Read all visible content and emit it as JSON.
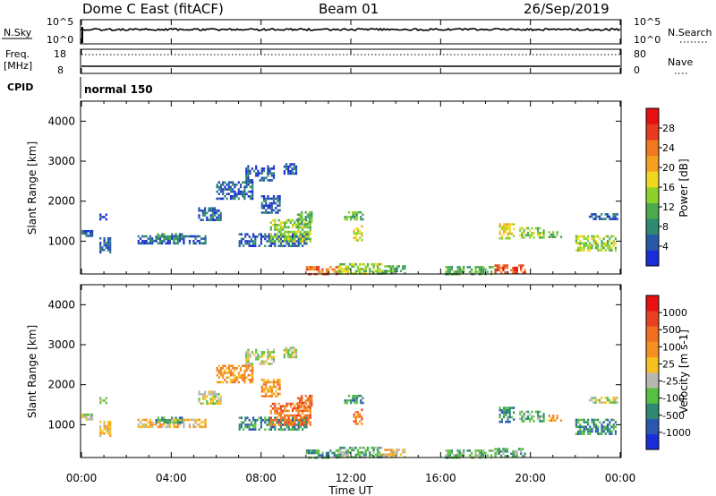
{
  "header": {
    "title": "Dome C East (fitACF)",
    "beam": "Beam 01",
    "date": "26/Sep/2019"
  },
  "top_panel": {
    "nsky_label": "N.Sky",
    "nsky_ticks_left": [
      "10^5",
      "10^0"
    ],
    "nsky_ticks_right": [
      "10^5",
      "10^0"
    ],
    "nsearch_label": "N.Search",
    "freq_label": "Freq.",
    "freq_unit": "[MHz]",
    "freq_ticks": [
      "18",
      "8"
    ],
    "nave_ticks": [
      "80",
      "0"
    ],
    "nave_label": "Nave",
    "cpid_label": "CPID",
    "cpid_value": "normal 150"
  },
  "x_axis": {
    "label": "Time UT",
    "ticks": [
      "00:00",
      "04:00",
      "08:00",
      "12:00",
      "16:00",
      "20:00",
      "00:00"
    ]
  },
  "chart_data": [
    {
      "type": "heatmap",
      "name": "power",
      "ylabel": "Slant Range [km]",
      "yticks": [
        1000,
        2000,
        3000,
        4000
      ],
      "ylim": [
        180,
        4500
      ],
      "xlim": [
        0,
        24
      ],
      "colorbar": {
        "label": "Power [dB]",
        "ticks": [
          "4",
          "8",
          "12",
          "16",
          "20",
          "24",
          "28"
        ],
        "colors": [
          "#1a2bd8",
          "#2858a8",
          "#2e8a70",
          "#4caa4c",
          "#8cd22a",
          "#f0d820",
          "#f5a020",
          "#f07820",
          "#e83a20",
          "#e81010"
        ]
      },
      "clusters": [
        {
          "t": [
            0.0,
            0.5
          ],
          "r": [
            1150,
            1280
          ],
          "level": 1
        },
        {
          "t": [
            0.8,
            1.3
          ],
          "r": [
            700,
            1100
          ],
          "level": 1
        },
        {
          "t": [
            0.8,
            1.1
          ],
          "r": [
            1550,
            1750
          ],
          "level": 1
        },
        {
          "t": [
            2.5,
            5.5
          ],
          "r": [
            950,
            1150
          ],
          "level": 1
        },
        {
          "t": [
            3.2,
            4.5
          ],
          "r": [
            1050,
            1200
          ],
          "level": 2
        },
        {
          "t": [
            5.2,
            6.2
          ],
          "r": [
            1550,
            1850
          ],
          "level": 1
        },
        {
          "t": [
            6.0,
            7.6
          ],
          "r": [
            2050,
            2500
          ],
          "level": 1
        },
        {
          "t": [
            7.3,
            8.6
          ],
          "r": [
            2550,
            2900
          ],
          "level": 1
        },
        {
          "t": [
            9.0,
            9.6
          ],
          "r": [
            2700,
            2950
          ],
          "level": 1
        },
        {
          "t": [
            8.0,
            8.8
          ],
          "r": [
            1700,
            2150
          ],
          "level": 1
        },
        {
          "t": [
            7.0,
            10.0
          ],
          "r": [
            900,
            1200
          ],
          "level": 1
        },
        {
          "t": [
            8.4,
            10.2
          ],
          "r": [
            1000,
            1550
          ],
          "level": 4
        },
        {
          "t": [
            9.6,
            10.3
          ],
          "r": [
            1450,
            1750
          ],
          "level": 3
        },
        {
          "t": [
            11.7,
            12.5
          ],
          "r": [
            1550,
            1750
          ],
          "level": 3
        },
        {
          "t": [
            12.1,
            12.5
          ],
          "r": [
            1000,
            1400
          ],
          "level": 5
        },
        {
          "t": [
            10.0,
            11.4
          ],
          "r": [
            200,
            380
          ],
          "level": 7
        },
        {
          "t": [
            11.4,
            13.4
          ],
          "r": [
            200,
            450
          ],
          "level": 4
        },
        {
          "t": [
            13.4,
            14.4
          ],
          "r": [
            200,
            400
          ],
          "level": 3
        },
        {
          "t": [
            16.2,
            18.4
          ],
          "r": [
            200,
            380
          ],
          "level": 3
        },
        {
          "t": [
            18.4,
            19.8
          ],
          "r": [
            200,
            420
          ],
          "level": 8
        },
        {
          "t": [
            18.6,
            19.3
          ],
          "r": [
            1100,
            1450
          ],
          "level": 5
        },
        {
          "t": [
            19.5,
            20.6
          ],
          "r": [
            1100,
            1350
          ],
          "level": 4
        },
        {
          "t": [
            20.8,
            21.4
          ],
          "r": [
            1100,
            1250
          ],
          "level": 3
        },
        {
          "t": [
            22.0,
            23.8
          ],
          "r": [
            750,
            1150
          ],
          "level": 4
        },
        {
          "t": [
            22.6,
            23.9
          ],
          "r": [
            1550,
            1700
          ],
          "level": 1
        }
      ]
    },
    {
      "type": "heatmap",
      "name": "velocity",
      "ylabel": "Slant Range [km]",
      "yticks": [
        1000,
        2000,
        3000,
        4000
      ],
      "ylim": [
        180,
        4500
      ],
      "xlim": [
        0,
        24
      ],
      "colorbar": {
        "label": "Velocity [m s-1]",
        "ticks": [
          "1000",
          "500",
          "100",
          "25",
          "-25",
          "-100",
          "-500",
          "-1000"
        ],
        "colors": [
          "#1a2bd8",
          "#2a58b0",
          "#2e8a70",
          "#58c040",
          "#b8b8b0",
          "#f5c020",
          "#f59020",
          "#f07020",
          "#e84020",
          "#e81010"
        ]
      },
      "clusters": [
        {
          "t": [
            0.0,
            0.5
          ],
          "r": [
            1150,
            1280
          ],
          "level": 4
        },
        {
          "t": [
            0.8,
            1.3
          ],
          "r": [
            700,
            1100
          ],
          "level": 5
        },
        {
          "t": [
            0.8,
            1.1
          ],
          "r": [
            1550,
            1750
          ],
          "level": 4
        },
        {
          "t": [
            2.5,
            5.5
          ],
          "r": [
            950,
            1150
          ],
          "level": 5
        },
        {
          "t": [
            3.2,
            4.5
          ],
          "r": [
            1050,
            1200
          ],
          "level": 2
        },
        {
          "t": [
            5.2,
            6.2
          ],
          "r": [
            1550,
            1850
          ],
          "level": 4
        },
        {
          "t": [
            6.0,
            7.6
          ],
          "r": [
            2050,
            2500
          ],
          "level": 6
        },
        {
          "t": [
            7.3,
            8.6
          ],
          "r": [
            2550,
            2900
          ],
          "level": 4
        },
        {
          "t": [
            9.0,
            9.6
          ],
          "r": [
            2700,
            2950
          ],
          "level": 4
        },
        {
          "t": [
            8.0,
            8.8
          ],
          "r": [
            1700,
            2150
          ],
          "level": 6
        },
        {
          "t": [
            7.0,
            10.0
          ],
          "r": [
            900,
            1200
          ],
          "level": 2
        },
        {
          "t": [
            8.4,
            10.2
          ],
          "r": [
            1000,
            1550
          ],
          "level": 7
        },
        {
          "t": [
            9.6,
            10.3
          ],
          "r": [
            1450,
            1750
          ],
          "level": 7
        },
        {
          "t": [
            11.7,
            12.5
          ],
          "r": [
            1550,
            1750
          ],
          "level": 2
        },
        {
          "t": [
            12.1,
            12.5
          ],
          "r": [
            1000,
            1400
          ],
          "level": 7
        },
        {
          "t": [
            10.0,
            11.4
          ],
          "r": [
            200,
            380
          ],
          "level": 2
        },
        {
          "t": [
            11.4,
            13.4
          ],
          "r": [
            200,
            450
          ],
          "level": 3
        },
        {
          "t": [
            13.4,
            14.4
          ],
          "r": [
            200,
            400
          ],
          "level": 5
        },
        {
          "t": [
            16.2,
            18.4
          ],
          "r": [
            200,
            380
          ],
          "level": 3
        },
        {
          "t": [
            18.4,
            19.8
          ],
          "r": [
            200,
            420
          ],
          "level": 3
        },
        {
          "t": [
            18.6,
            19.3
          ],
          "r": [
            1100,
            1450
          ],
          "level": 2
        },
        {
          "t": [
            19.5,
            20.6
          ],
          "r": [
            1100,
            1350
          ],
          "level": 3
        },
        {
          "t": [
            20.8,
            21.4
          ],
          "r": [
            1100,
            1250
          ],
          "level": 6
        },
        {
          "t": [
            22.0,
            23.8
          ],
          "r": [
            750,
            1150
          ],
          "level": 2
        },
        {
          "t": [
            22.6,
            23.9
          ],
          "r": [
            1550,
            1700
          ],
          "level": 4
        }
      ]
    }
  ]
}
